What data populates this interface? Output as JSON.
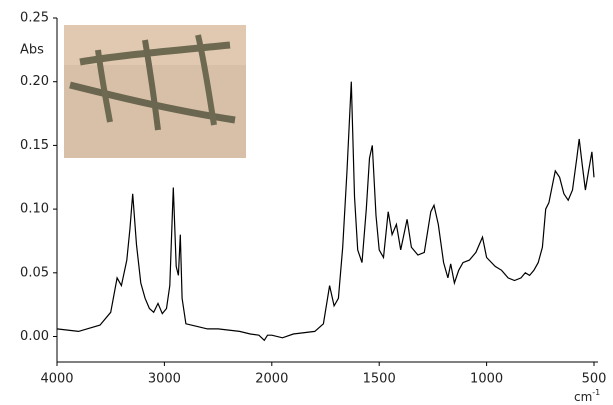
{
  "chart_data": {
    "type": "line",
    "y_label": "Abs",
    "x_label": {
      "text": "cm",
      "superscript": "-1"
    },
    "x_expansion": {
      "below": 2000,
      "factor": 2
    },
    "color": "#000000",
    "xlim": [
      4000,
      500
    ],
    "ylim": [
      -0.02,
      0.25
    ],
    "xticks": [
      4000,
      3000,
      2000,
      1500,
      1000,
      500
    ],
    "yticks": [
      {
        "value": 0,
        "label": "0.00"
      },
      0.05,
      {
        "value": 0.1,
        "label": "0.10"
      },
      0.15,
      {
        "value": 0.2,
        "label": "0.20"
      },
      0.25
    ],
    "x": [
      4000,
      3800,
      3600,
      3500,
      3440,
      3400,
      3350,
      3320,
      3295,
      3260,
      3220,
      3180,
      3140,
      3100,
      3060,
      3020,
      2980,
      2950,
      2917,
      2890,
      2870,
      2852,
      2835,
      2800,
      2700,
      2600,
      2500,
      2400,
      2300,
      2200,
      2120,
      2070,
      2040,
      2000,
      1950,
      1900,
      1800,
      1760,
      1731,
      1710,
      1690,
      1670,
      1650,
      1630,
      1615,
      1600,
      1580,
      1560,
      1545,
      1532,
      1515,
      1500,
      1480,
      1458,
      1440,
      1420,
      1400,
      1370,
      1350,
      1320,
      1290,
      1260,
      1245,
      1225,
      1200,
      1180,
      1167,
      1150,
      1130,
      1110,
      1080,
      1050,
      1019,
      1000,
      960,
      930,
      900,
      870,
      840,
      820,
      800,
      780,
      760,
      740,
      725,
      710,
      690,
      680,
      660,
      640,
      620,
      600,
      580,
      569,
      555,
      540,
      525,
      510,
      500
    ],
    "values": [
      0.006,
      0.004,
      0.009,
      0.019,
      0.046,
      0.04,
      0.06,
      0.085,
      0.112,
      0.072,
      0.042,
      0.03,
      0.022,
      0.019,
      0.026,
      0.018,
      0.022,
      0.04,
      0.117,
      0.055,
      0.048,
      0.08,
      0.03,
      0.01,
      0.008,
      0.006,
      0.006,
      0.005,
      0.004,
      0.002,
      0.001,
      -0.003,
      0.001,
      0.001,
      -0.001,
      0.002,
      0.004,
      0.01,
      0.04,
      0.024,
      0.03,
      0.07,
      0.13,
      0.2,
      0.11,
      0.068,
      0.058,
      0.1,
      0.14,
      0.15,
      0.095,
      0.068,
      0.062,
      0.098,
      0.08,
      0.088,
      0.068,
      0.092,
      0.07,
      0.064,
      0.066,
      0.098,
      0.103,
      0.088,
      0.058,
      0.046,
      0.057,
      0.042,
      0.052,
      0.058,
      0.06,
      0.066,
      0.078,
      0.062,
      0.055,
      0.052,
      0.046,
      0.044,
      0.046,
      0.05,
      0.048,
      0.052,
      0.058,
      0.07,
      0.1,
      0.105,
      0.122,
      0.13,
      0.125,
      0.112,
      0.107,
      0.115,
      0.14,
      0.155,
      0.135,
      0.115,
      0.13,
      0.145,
      0.125
    ]
  }
}
